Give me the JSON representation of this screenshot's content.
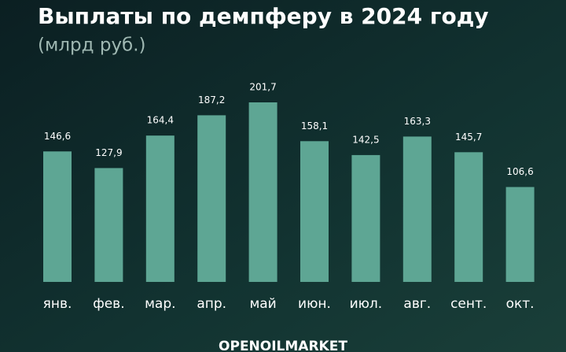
{
  "chart_data": {
    "type": "bar",
    "title": "Выплаты по демпферу в 2024 году",
    "subtitle": "(млрд руб.)",
    "categories": [
      "янв.",
      "фев.",
      "мар.",
      "апр.",
      "май",
      "июн.",
      "июл.",
      "авг.",
      "сент.",
      "окт."
    ],
    "values": [
      146.6,
      127.9,
      164.4,
      187.2,
      201.7,
      158.1,
      142.5,
      163.3,
      145.7,
      106.6
    ],
    "value_labels": [
      "146,6",
      "127,9",
      "164,4",
      "187,2",
      "201,7",
      "158,1",
      "142,5",
      "163,3",
      "145,7",
      "106,6"
    ],
    "color": "#5ea694",
    "source": "OPENOILMARKET"
  }
}
